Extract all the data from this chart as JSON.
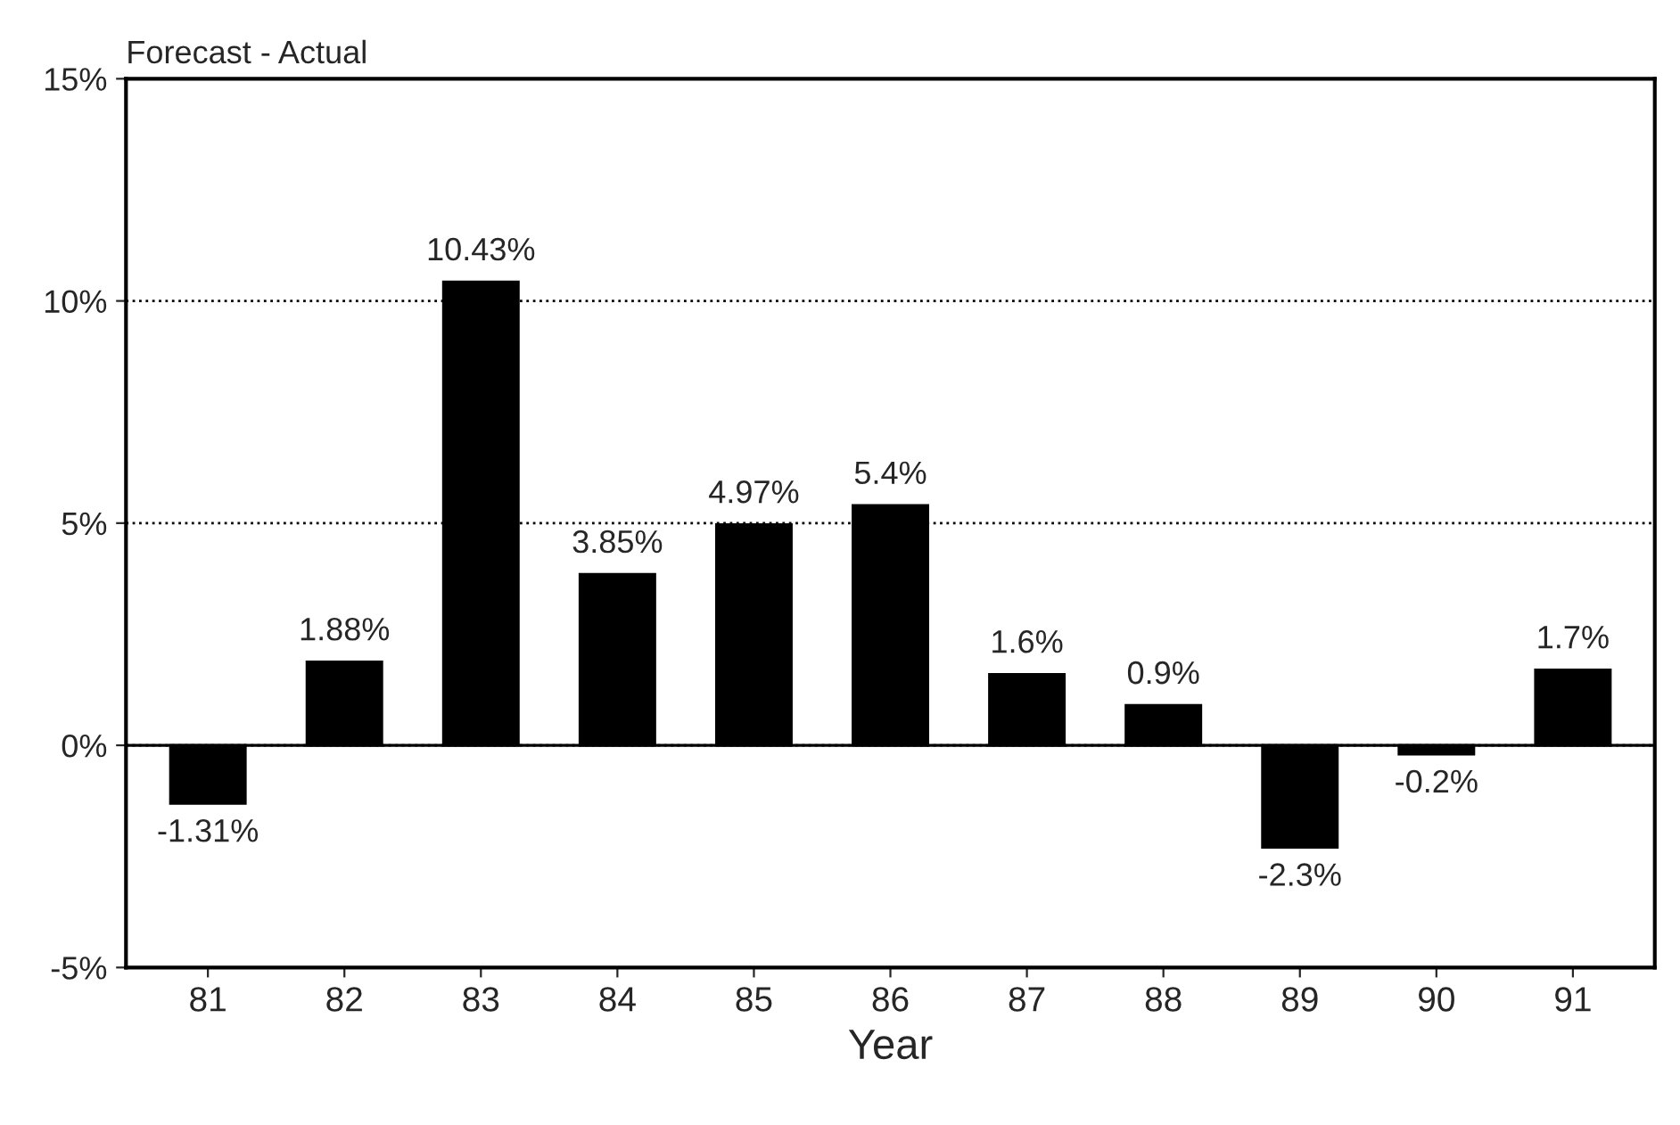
{
  "chart_data": {
    "type": "bar",
    "ylabel": "Forecast - Actual",
    "xlabel": "Year",
    "categories": [
      "81",
      "82",
      "83",
      "84",
      "85",
      "86",
      "87",
      "88",
      "89",
      "90",
      "91"
    ],
    "values": [
      -1.31,
      1.88,
      10.43,
      3.85,
      4.97,
      5.4,
      1.6,
      0.9,
      -2.3,
      -0.2,
      1.7
    ],
    "value_labels": [
      "-1.31%",
      "1.88%",
      "10.43%",
      "3.85%",
      "4.97%",
      "5.4%",
      "1.6%",
      "0.9%",
      "-2.3%",
      "-0.2%",
      "1.7%"
    ],
    "color": "#000000",
    "ylim": [
      -5,
      15
    ],
    "yticks": [
      {
        "value": -5,
        "label": "-5%"
      },
      {
        "value": 0,
        "label": "0%"
      },
      {
        "value": 5,
        "label": "5%"
      },
      {
        "value": 10,
        "label": "10%"
      },
      {
        "value": 15,
        "label": "15%"
      }
    ],
    "grid": "y",
    "legend": false
  }
}
